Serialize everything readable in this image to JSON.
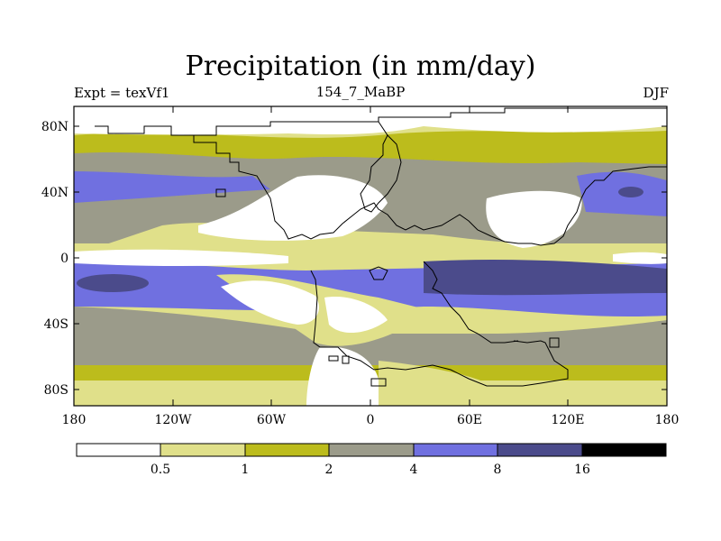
{
  "title": "Precipitation (in mm/day)",
  "subtitle_left": "Expt = texVf1",
  "subtitle_center": "154_7_MaBP",
  "subtitle_right": "DJF",
  "y_axis": {
    "ticks": [
      "80N",
      "40N",
      "0",
      "40S",
      "80S"
    ]
  },
  "x_axis": {
    "ticks": [
      "180",
      "120W",
      "60W",
      "0",
      "60E",
      "120E",
      "180"
    ]
  },
  "legend": {
    "labels": [
      "0.5",
      "1",
      "2",
      "4",
      "8",
      "16"
    ],
    "colors": [
      "#ffffff",
      "#e0e08a",
      "#bcbc1c",
      "#9b9b8a",
      "#7070e0",
      "#4b4b8b",
      "#000000"
    ]
  },
  "colors": {
    "white": "#ffffff",
    "light_yellow": "#e0e08a",
    "olive": "#bcbc1c",
    "gray": "#9b9b8a",
    "blue": "#7070e0",
    "dark_blue": "#4b4b8b"
  }
}
